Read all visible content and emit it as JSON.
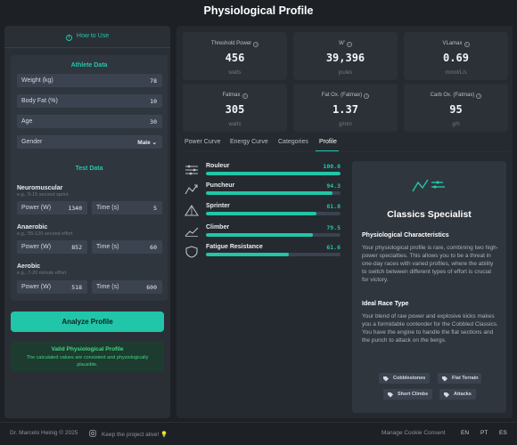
{
  "page_title": "Physiological Profile",
  "how_to_use": "How to Use",
  "athlete": {
    "title": "Athlete Data",
    "fields": [
      {
        "label": "Weight (kg)",
        "value": "78"
      },
      {
        "label": "Body Fat (%)",
        "value": "10"
      },
      {
        "label": "Age",
        "value": "30"
      },
      {
        "label": "Gender",
        "value": "Male"
      }
    ]
  },
  "test": {
    "title": "Test Data",
    "groups": [
      {
        "name": "Neuromuscular",
        "hint": "e.g., 5-15 second sprint",
        "power_label": "Power (W)",
        "power": "1340",
        "time_label": "Time (s)",
        "time": "5"
      },
      {
        "name": "Anaerobic",
        "hint": "e.g., 55-120 second effort",
        "power_label": "Power (W)",
        "power": "852",
        "time_label": "Time (s)",
        "time": "60"
      },
      {
        "name": "Aerobic",
        "hint": "e.g., 7-20 minute effort",
        "power_label": "Power (W)",
        "power": "518",
        "time_label": "Time (s)",
        "time": "600"
      }
    ]
  },
  "analyze_button": "Analyze Profile",
  "validation": {
    "title": "Valid Physiological Profile",
    "text": "The calculated values are consistent and physiologically plausible."
  },
  "metrics": [
    {
      "label": "Threshold Power",
      "value": "456",
      "unit": "watts"
    },
    {
      "label": "W'",
      "value": "39,396",
      "unit": "joules"
    },
    {
      "label": "VLamax",
      "value": "0.69",
      "unit": "mmol/L/s"
    },
    {
      "label": "Fatmax",
      "value": "305",
      "unit": "watts"
    },
    {
      "label": "Fat Ox. (Fatmax)",
      "value": "1.37",
      "unit": "g/min"
    },
    {
      "label": "Carb Ox. (Fatmax)",
      "value": "95",
      "unit": "g/h"
    }
  ],
  "tabs": [
    "Power Curve",
    "Energy Curve",
    "Categories",
    "Profile"
  ],
  "active_tab": "Profile",
  "profile_bars": [
    {
      "name": "Rouleur",
      "display": "100.0",
      "value": 100.0,
      "icon": "sliders-icon"
    },
    {
      "name": "Puncheur",
      "display": "94.3",
      "value": 94.3,
      "icon": "zigzag-icon"
    },
    {
      "name": "Sprinter",
      "display": "81.8",
      "value": 81.8,
      "icon": "triangle-icon"
    },
    {
      "name": "Climber",
      "display": "79.5",
      "value": 79.5,
      "icon": "trend-up-icon"
    },
    {
      "name": "Fatigue Resistance",
      "display": "61.6",
      "value": 61.6,
      "icon": "shield-icon"
    }
  ],
  "specialist": {
    "title": "Classics Specialist",
    "char_heading": "Physiological Characteristics",
    "char_text": "Your physiological profile is rare, combining two high-power specialties. This allows you to be a threat in one-day races with varied profiles, where the ability to switch between different types of effort is crucial for victory.",
    "race_heading": "Ideal Race Type",
    "race_text": "Your blend of raw power and explosive kicks makes you a formidable contender for the Cobbled Classics. You have the engine to handle the flat sections and the punch to attack on the bergs.",
    "tags": [
      "Cobblestones",
      "Flat Terrain",
      "Short Climbs",
      "Attacks"
    ]
  },
  "footer": {
    "credit": "Dr. Marcelo Heinig © 2025",
    "support": "Keep the project alive!",
    "cookie": "Manage Cookie Consent",
    "languages": [
      "EN",
      "PT",
      "ES"
    ]
  },
  "colors": {
    "accent": "#21c6a8",
    "valid": "#43d586",
    "background": "#1d2126"
  }
}
